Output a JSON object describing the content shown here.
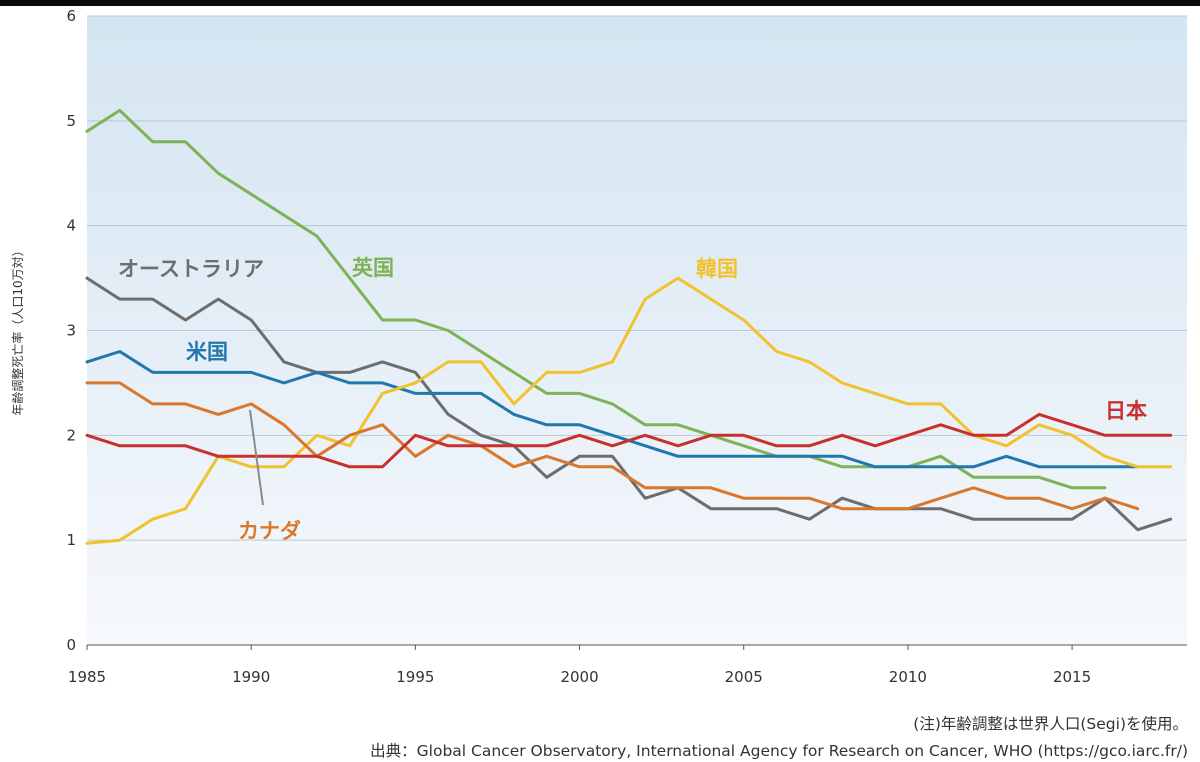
{
  "chart_data": {
    "type": "line",
    "ylabel": "年齢調整死亡率（人口10万対）",
    "xlim": [
      1985,
      2018.5
    ],
    "ylim": [
      0,
      6
    ],
    "x_ticks": [
      "1985",
      "1990",
      "1995",
      "2000",
      "2005",
      "2010",
      "2015"
    ],
    "y_ticks": [
      "0",
      "1",
      "2",
      "3",
      "4",
      "5",
      "6"
    ],
    "grid": true,
    "background": "light blue gradient",
    "series": [
      {
        "name": "英国",
        "color": "#7db356",
        "x": [
          1985,
          1986,
          1987,
          1988,
          1989,
          1990,
          1991,
          1992,
          1993,
          1994,
          1995,
          1996,
          1997,
          1998,
          1999,
          2000,
          2001,
          2002,
          2003,
          2004,
          2005,
          2006,
          2007,
          2008,
          2009,
          2010,
          2011,
          2012,
          2013,
          2014,
          2015,
          2016
        ],
        "y": [
          4.9,
          5.1,
          4.8,
          4.8,
          4.5,
          4.3,
          4.1,
          3.9,
          3.5,
          3.1,
          3.1,
          3.0,
          2.8,
          2.6,
          2.4,
          2.4,
          2.3,
          2.1,
          2.1,
          2.0,
          1.9,
          1.8,
          1.8,
          1.7,
          1.7,
          1.7,
          1.8,
          1.6,
          1.6,
          1.6,
          1.5,
          1.5
        ]
      },
      {
        "name": "オーストラリア",
        "color": "#6d6d6d",
        "x": [
          1985,
          1986,
          1987,
          1988,
          1989,
          1990,
          1991,
          1992,
          1993,
          1994,
          1995,
          1996,
          1997,
          1998,
          1999,
          2000,
          2001,
          2002,
          2003,
          2004,
          2005,
          2006,
          2007,
          2008,
          2009,
          2010,
          2011,
          2012,
          2013,
          2014,
          2015,
          2016,
          2017,
          2018
        ],
        "y": [
          3.5,
          3.3,
          3.3,
          3.1,
          3.3,
          3.1,
          2.7,
          2.6,
          2.6,
          2.7,
          2.6,
          2.2,
          2.0,
          1.9,
          1.6,
          1.8,
          1.8,
          1.4,
          1.5,
          1.3,
          1.3,
          1.3,
          1.2,
          1.4,
          1.3,
          1.3,
          1.3,
          1.2,
          1.2,
          1.2,
          1.2,
          1.4,
          1.1,
          1.2
        ]
      },
      {
        "name": "米国",
        "color": "#2078ad",
        "x": [
          1985,
          1986,
          1987,
          1988,
          1989,
          1990,
          1991,
          1992,
          1993,
          1994,
          1995,
          1996,
          1997,
          1998,
          1999,
          2000,
          2001,
          2002,
          2003,
          2004,
          2005,
          2006,
          2007,
          2008,
          2009,
          2010,
          2011,
          2012,
          2013,
          2014,
          2015,
          2016,
          2017
        ],
        "y": [
          2.7,
          2.8,
          2.6,
          2.6,
          2.6,
          2.6,
          2.5,
          2.6,
          2.5,
          2.5,
          2.4,
          2.4,
          2.4,
          2.2,
          2.1,
          2.1,
          2.0,
          1.9,
          1.8,
          1.8,
          1.8,
          1.8,
          1.8,
          1.8,
          1.7,
          1.7,
          1.7,
          1.7,
          1.8,
          1.7,
          1.7,
          1.7,
          1.7
        ]
      },
      {
        "name": "韓国",
        "color": "#f2c12e",
        "x": [
          1985,
          1986,
          1987,
          1988,
          1989,
          1990,
          1991,
          1992,
          1993,
          1994,
          1995,
          1996,
          1997,
          1998,
          1999,
          2000,
          2001,
          2002,
          2003,
          2004,
          2005,
          2006,
          2007,
          2008,
          2009,
          2010,
          2011,
          2012,
          2013,
          2014,
          2015,
          2016,
          2017,
          2018
        ],
        "y": [
          0.97,
          1.0,
          1.2,
          1.3,
          1.8,
          1.7,
          1.7,
          2.0,
          1.9,
          2.4,
          2.5,
          2.7,
          2.7,
          2.3,
          2.6,
          2.6,
          2.7,
          3.3,
          3.5,
          3.3,
          3.1,
          2.8,
          2.7,
          2.5,
          2.4,
          2.3,
          2.3,
          2.0,
          1.9,
          2.1,
          2.0,
          1.8,
          1.7,
          1.7
        ]
      },
      {
        "name": "カナダ",
        "color": "#d9782d",
        "x": [
          1985,
          1986,
          1987,
          1988,
          1989,
          1990,
          1991,
          1992,
          1993,
          1994,
          1995,
          1996,
          1997,
          1998,
          1999,
          2000,
          2001,
          2002,
          2003,
          2004,
          2005,
          2006,
          2007,
          2008,
          2009,
          2010,
          2011,
          2012,
          2013,
          2014,
          2015,
          2016,
          2017
        ],
        "y": [
          2.5,
          2.5,
          2.3,
          2.3,
          2.2,
          2.3,
          2.1,
          1.8,
          2.0,
          2.1,
          1.8,
          2.0,
          1.9,
          1.7,
          1.8,
          1.7,
          1.7,
          1.5,
          1.5,
          1.5,
          1.4,
          1.4,
          1.4,
          1.3,
          1.3,
          1.3,
          1.4,
          1.5,
          1.4,
          1.4,
          1.3,
          1.4,
          1.3
        ]
      },
      {
        "name": "日本",
        "color": "#c8302f",
        "x": [
          1985,
          1986,
          1987,
          1988,
          1989,
          1990,
          1991,
          1992,
          1993,
          1994,
          1995,
          1996,
          1997,
          1998,
          1999,
          2000,
          2001,
          2002,
          2003,
          2004,
          2005,
          2006,
          2007,
          2008,
          2009,
          2010,
          2011,
          2012,
          2013,
          2014,
          2015,
          2016,
          2017,
          2018
        ],
        "y": [
          2.0,
          1.9,
          1.9,
          1.9,
          1.8,
          1.8,
          1.8,
          1.8,
          1.7,
          1.7,
          2.0,
          1.9,
          1.9,
          1.9,
          1.9,
          2.0,
          1.9,
          2.0,
          1.9,
          2.0,
          2.0,
          1.9,
          1.9,
          2.0,
          1.9,
          2.0,
          2.1,
          2.0,
          2.0,
          2.2,
          2.1,
          2.0,
          2.0,
          2.0
        ]
      }
    ]
  },
  "footnote": {
    "note": "(注)年齢調整は世界人口(Segi)を使用。",
    "source": "出典：Global Cancer Observatory, International Agency for Research on Cancer, WHO (https://gco.iarc.fr/)"
  }
}
